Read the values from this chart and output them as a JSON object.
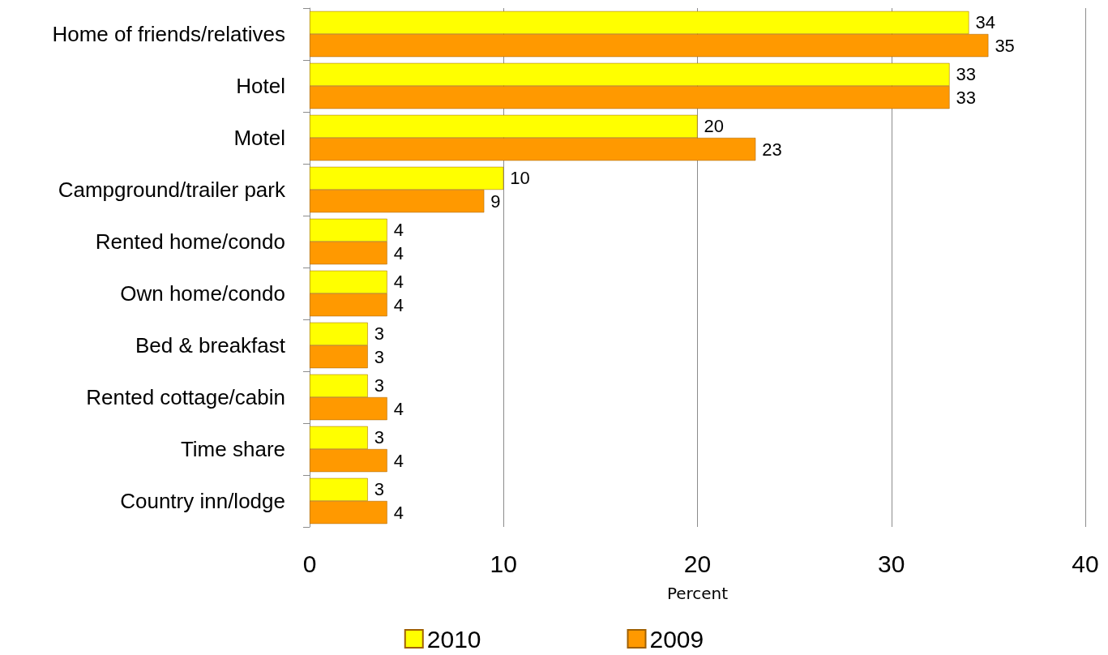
{
  "chart_data": {
    "type": "bar",
    "orientation": "horizontal",
    "xlabel": "Percent",
    "categories": [
      "Home of friends/relatives",
      "Hotel",
      "Motel",
      "Campground/trailer park",
      "Rented home/condo",
      "Own home/condo",
      "Bed & breakfast",
      "Rented cottage/cabin",
      "Time share",
      "Country inn/lodge"
    ],
    "series": [
      {
        "name": "2010",
        "color": "#ffff00",
        "values": [
          34,
          33,
          20,
          10,
          4,
          4,
          3,
          3,
          3,
          3
        ]
      },
      {
        "name": "2009",
        "color": "#ff9900",
        "values": [
          35,
          33,
          23,
          9,
          4,
          4,
          3,
          4,
          4,
          4
        ]
      }
    ],
    "xlim": [
      0,
      40
    ],
    "xticks": [
      0,
      10,
      20,
      30,
      40
    ],
    "grid": "x",
    "legend": "bottom",
    "data_labels": true
  }
}
